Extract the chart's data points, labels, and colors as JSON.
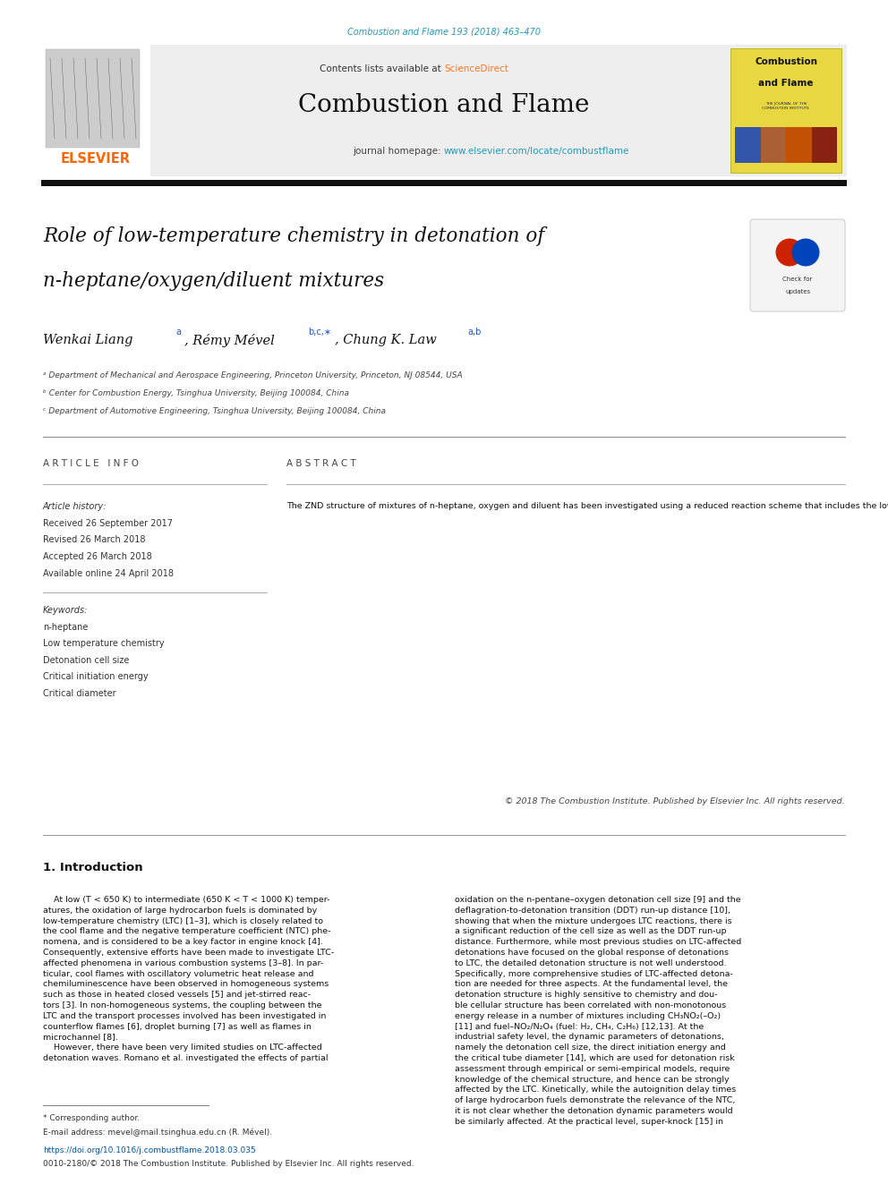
{
  "page_width": 9.92,
  "page_height": 13.23,
  "bg_color": "#ffffff",
  "top_citation": "Combustion and Flame 193 (2018) 463–470",
  "top_citation_color": "#2299bb",
  "header_bg": "#eeeeee",
  "sciencedirect_color": "#ff7722",
  "journal_name": "Combustion and Flame",
  "journal_url": "www.elsevier.com/locate/combustflame",
  "journal_url_color": "#2299bb",
  "elsevier_color": "#ff6600",
  "cover_bg": "#e8d740",
  "article_title_line1": "Role of low-temperature chemistry in detonation of",
  "article_title_line2": "n-heptane/oxygen/diluent mixtures",
  "affil_a": "ᵃ Department of Mechanical and Aerospace Engineering, Princeton University, Princeton, NJ 08544, USA",
  "affil_b": "ᵇ Center for Combustion Energy, Tsinghua University, Beijing 100084, China",
  "affil_c": "ᶜ Department of Automotive Engineering, Tsinghua University, Beijing 100084, China",
  "article_info_title": "A R T I C L E   I N F O",
  "abstract_title": "A B S T R A C T",
  "article_history_label": "Article history:",
  "received": "Received 26 September 2017",
  "revised": "Revised 26 March 2018",
  "accepted": "Accepted 26 March 2018",
  "available": "Available online 24 April 2018",
  "keywords_label": "Keywords:",
  "keywords": [
    "n-heptane",
    "Low temperature chemistry",
    "Detonation cell size",
    "Critical initiation energy",
    "Critical diameter"
  ],
  "abstract_text": "The ZND structure of mixtures of n-heptane, oxygen and diluent has been investigated using a reduced reaction scheme that includes the low-temperature chemistry (LTC) pathways. It is shown that for high CO₂ contents (Xₙ₀₂ > 0.82) such that the reaction temperature is relatively low, the structure is affected by LTC and exhibits two distinct stages of energy release caused by low- and high-temperature chemistry, respectively. Based on the ZND structures, the dynamic parameters such as cell size, direct initiation energy and critical tube diameter of detonation within the LTC affected regime have been evaluated using various semi-empirical models. Such detonation structures exhibiting two distinct length scales lead to two distinct values for each of these dynamic parameters. For the evolution of the induction length and cell size, although the total length scales do not show negative response with increasing temperature, the length scale of the first-stage ignition demonstrates negative response when the post-shock temperature decreases within the LTC controlled regime. For the evolution of direct initiation energy, the models based on critical curvature and critical decay rate show negative temperature response, but the model based on cell size predicts continuous increase of critical initiation energy with increasing dilution. For the critical tube diameter, the model based on the critical decay rate approach also exhibits the negative temperature response.",
  "copyright_text": "© 2018 The Combustion Institute. Published by Elsevier Inc. All rights reserved.",
  "intro_title": "1. Introduction",
  "intro_col1_text": "    At low (T < 650 K) to intermediate (650 K < T < 1000 K) temper-\natures, the oxidation of large hydrocarbon fuels is dominated by\nlow-temperature chemistry (LTC) [1–3], which is closely related to\nthe cool flame and the negative temperature coefficient (NTC) phe-\nnomena, and is considered to be a key factor in engine knock [4].\nConsequently, extensive efforts have been made to investigate LTC-\naffected phenomena in various combustion systems [3–8]. In par-\nticular, cool flames with oscillatory volumetric heat release and\nchemiluminescence have been observed in homogeneous systems\nsuch as those in heated closed vessels [5] and jet-stirred reac-\ntors [3]. In non-homogeneous systems, the coupling between the\nLTC and the transport processes involved has been investigated in\ncounterflow flames [6], droplet burning [7] as well as flames in\nmicrochannel [8].\n    However, there have been very limited studies on LTC-affected\ndetonation waves. Romano et al. investigated the effects of partial",
  "intro_col2_text": "oxidation on the n-pentane–oxygen detonation cell size [9] and the\ndeflagration-to-detonation transition (DDT) run-up distance [10],\nshowing that when the mixture undergoes LTC reactions, there is\na significant reduction of the cell size as well as the DDT run-up\ndistance. Furthermore, while most previous studies on LTC-affected\ndetonations have focused on the global response of detonations\nto LTC, the detailed detonation structure is not well understood.\nSpecifically, more comprehensive studies of LTC-affected detona-\ntion are needed for three aspects. At the fundamental level, the\ndetonation structure is highly sensitive to chemistry and dou-\nble cellular structure has been correlated with non-monotonous\nenergy release in a number of mixtures including CH₃NO₂(–O₂)\n[11] and fuel–NO₂/N₂O₄ (fuel: H₂, CH₄, C₂H₆) [12,13]. At the\nindustrial safety level, the dynamic parameters of detonations,\nnamely the detonation cell size, the direct initiation energy and\nthe critical tube diameter [14], which are used for detonation risk\nassessment through empirical or semi-empirical models, require\nknowledge of the chemical structure, and hence can be strongly\naffected by the LTC. Kinetically, while the autoignition delay times\nof large hydrocarbon fuels demonstrate the relevance of the NTC,\nit is not clear whether the detonation dynamic parameters would\nbe similarly affected. At the practical level, super-knock [15] in",
  "footer_note": "* Corresponding author.",
  "footer_email": "E-mail address: mevel@mail.tsinghua.edu.cn (R. Mével).",
  "footer_doi": "https://doi.org/10.1016/j.combustflame.2018.03.035",
  "footer_doi_color": "#0055aa",
  "footer_copyright": "0010-2180/© 2018 The Combustion Institute. Published by Elsevier Inc. All rights reserved.",
  "lm": 0.48,
  "rm": 0.48
}
